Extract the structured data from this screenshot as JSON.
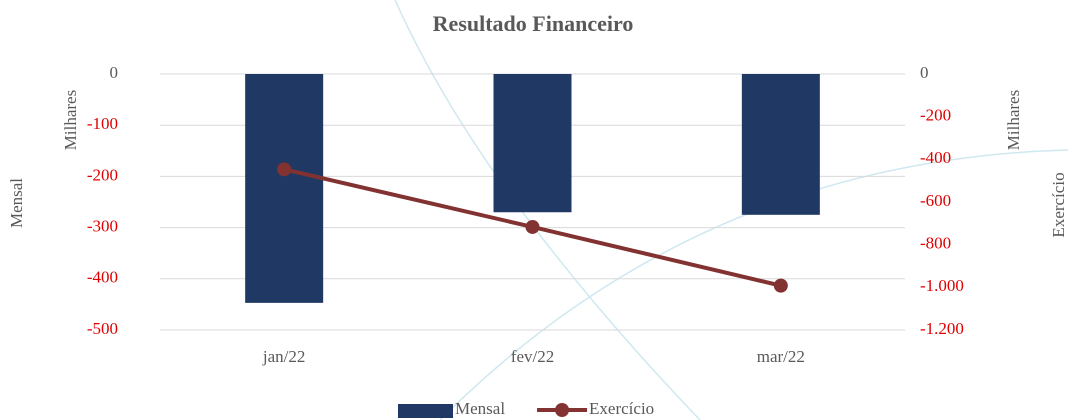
{
  "chart_data": {
    "type": "bar_line",
    "title": "Resultado Financeiro",
    "categories": [
      "jan/22",
      "fev/22",
      "mar/22"
    ],
    "series": [
      {
        "name": "Mensal",
        "type": "bar",
        "color": "#1f3864",
        "values": [
          -447,
          -270,
          -275
        ]
      },
      {
        "name": "Exercício",
        "type": "line",
        "axis": "y2",
        "color": "#833232",
        "values": [
          -447,
          -717,
          -992
        ]
      }
    ],
    "ylabel": "Mensal",
    "yunit": "Milhares",
    "y2label": "Exercício",
    "y2unit": "Milhares",
    "ylim": [
      -500,
      0
    ],
    "yticks": [
      0,
      -100,
      -200,
      -300,
      -400,
      -500
    ],
    "y2lim": [
      -1200,
      0
    ],
    "y2ticks": [
      0,
      -200,
      -400,
      -600,
      -800,
      {
        "value": -1000,
        "label": "-1.000"
      },
      {
        "value": -1200,
        "label": "-1.200"
      }
    ],
    "grid": true,
    "negative_tick_color": "#e00000",
    "legend": "bottom"
  }
}
